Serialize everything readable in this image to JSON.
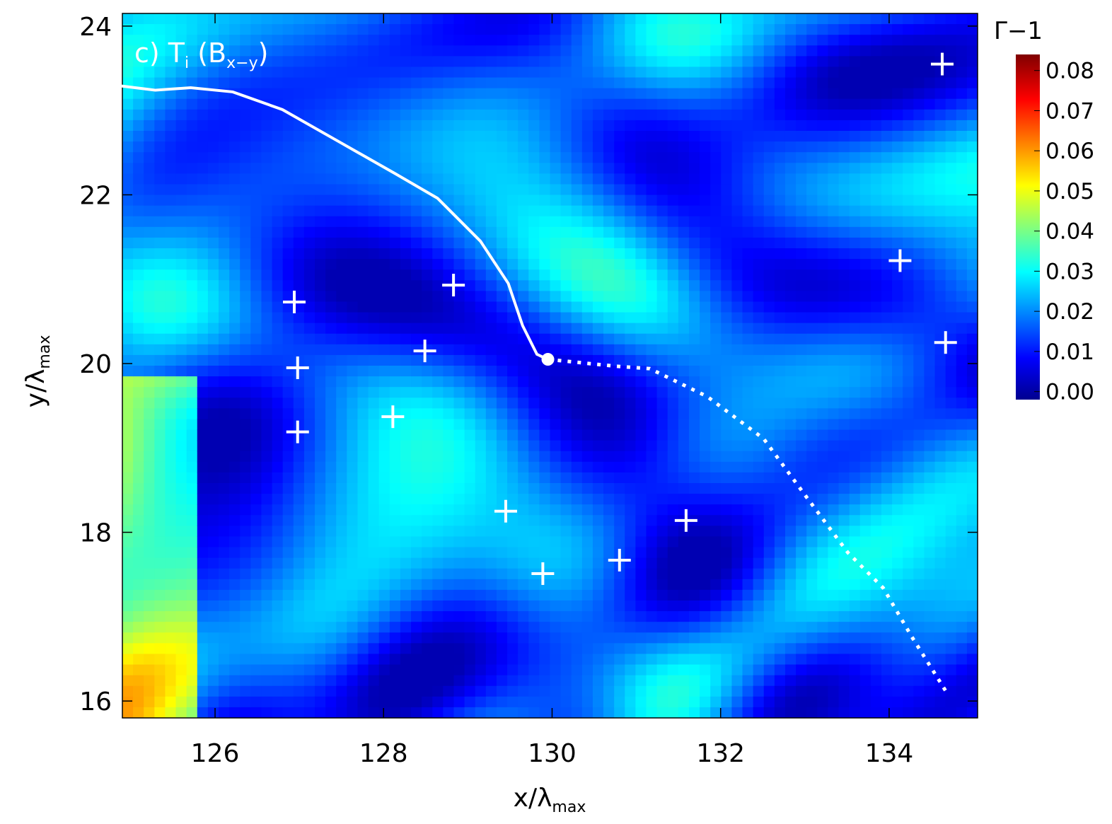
{
  "chart_data": {
    "type": "heatmap-overlay",
    "title_parts": [
      "c) T",
      "i",
      " (B",
      "x−y",
      ")"
    ],
    "xlabel_parts": [
      "x/λ",
      "max"
    ],
    "ylabel_parts": [
      "y/λ",
      "max"
    ],
    "xlim": [
      124.9,
      135.05
    ],
    "ylim": [
      15.8,
      24.15
    ],
    "xticks": [
      126,
      128,
      130,
      132,
      134
    ],
    "yticks": [
      16,
      18,
      20,
      22,
      24
    ],
    "colorbar": {
      "label": "Γ−1",
      "clim": [
        -0.002,
        0.084
      ],
      "ticks": [
        {
          "value": 0,
          "label": "0.00"
        },
        {
          "value": 0.01,
          "label": "0.01"
        },
        {
          "value": 0.02,
          "label": "0.02"
        },
        {
          "value": 0.03,
          "label": "0.03"
        },
        {
          "value": 0.04,
          "label": "0.04"
        },
        {
          "value": 0.05,
          "label": "0.05"
        },
        {
          "value": 0.06,
          "label": "0.06"
        },
        {
          "value": 0.07,
          "label": "0.07"
        },
        {
          "value": 0.08,
          "label": "0.08"
        }
      ]
    },
    "crosses": {
      "color": "#ffffff",
      "x": [
        134.63,
        134.13,
        134.67,
        126.94,
        126.98,
        126.98,
        128.83,
        128.49,
        128.11,
        129.45,
        129.89,
        130.8,
        131.59
      ],
      "y": [
        23.55,
        21.22,
        20.25,
        20.73,
        19.95,
        19.19,
        20.93,
        20.15,
        19.37,
        18.25,
        17.51,
        17.67,
        18.14
      ]
    },
    "solid_line": {
      "color": "#ffffff",
      "x": [
        124.89,
        125.29,
        125.71,
        126.21,
        126.8,
        127.47,
        128.14,
        128.64,
        129.15,
        129.48,
        129.65,
        129.82,
        129.95
      ],
      "y": [
        23.29,
        23.24,
        23.27,
        23.22,
        23.01,
        22.63,
        22.25,
        21.96,
        21.45,
        20.95,
        20.45,
        20.11,
        20.05
      ]
    },
    "dotted_line": {
      "color": "#ffffff",
      "x": [
        129.95,
        130.74,
        131.16,
        131.84,
        132.51,
        133.01,
        133.51,
        133.93,
        134.27,
        134.69
      ],
      "y": [
        20.05,
        19.97,
        19.94,
        19.61,
        19.11,
        18.43,
        17.76,
        17.34,
        16.76,
        16.09
      ]
    },
    "point": {
      "x": 129.95,
      "y": 20.05
    }
  }
}
